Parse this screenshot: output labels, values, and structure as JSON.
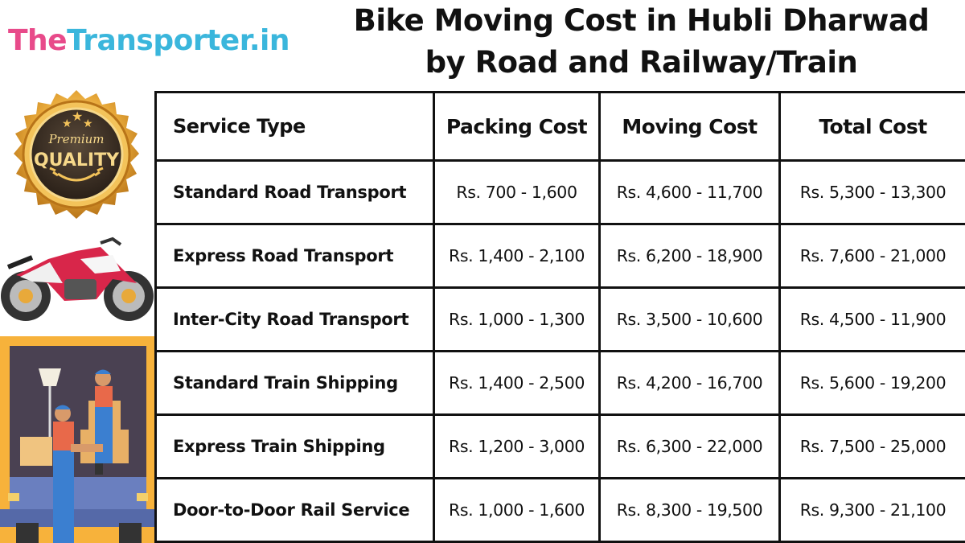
{
  "brand": {
    "part1": "The",
    "part2": "Transporter.in"
  },
  "title": {
    "line1": "Bike Moving Cost in Hubli Dharwad",
    "line2": "by Road and Railway/Train"
  },
  "badge": {
    "top_text": "Premium",
    "main_text": "QUALITY"
  },
  "table": {
    "headers": [
      "Service Type",
      "Packing Cost",
      "Moving Cost",
      "Total Cost"
    ],
    "rows": [
      {
        "service": "Standard Road Transport",
        "packing": "Rs. 700 - 1,600",
        "moving": "Rs. 4,600 - 11,700",
        "total": "Rs. 5,300 - 13,300"
      },
      {
        "service": "Express Road Transport",
        "packing": "Rs. 1,400 - 2,100",
        "moving": "Rs. 6,200 - 18,900",
        "total": "Rs. 7,600 - 21,000"
      },
      {
        "service": "Inter-City Road Transport",
        "packing": "Rs. 1,000 - 1,300",
        "moving": "Rs. 3,500 - 10,600",
        "total": "Rs. 4,500 - 11,900"
      },
      {
        "service": "Standard Train Shipping",
        "packing": "Rs. 1,400 - 2,500",
        "moving": "Rs. 4,200 - 16,700",
        "total": "Rs. 5,600 - 19,200"
      },
      {
        "service": "Express Train Shipping",
        "packing": "Rs. 1,200 - 3,000",
        "moving": "Rs. 6,300 - 22,000",
        "total": "Rs. 7,500 - 25,000"
      },
      {
        "service": "Door-to-Door Rail Service",
        "packing": "Rs. 1,000 - 1,600",
        "moving": "Rs. 8,300 - 19,500",
        "total": "Rs. 9,300 - 21,100"
      }
    ]
  },
  "colors": {
    "brand_pink": "#e84a8a",
    "brand_blue": "#3ab6dc",
    "gold": "#e8a93a",
    "bike_red": "#d8264a"
  }
}
